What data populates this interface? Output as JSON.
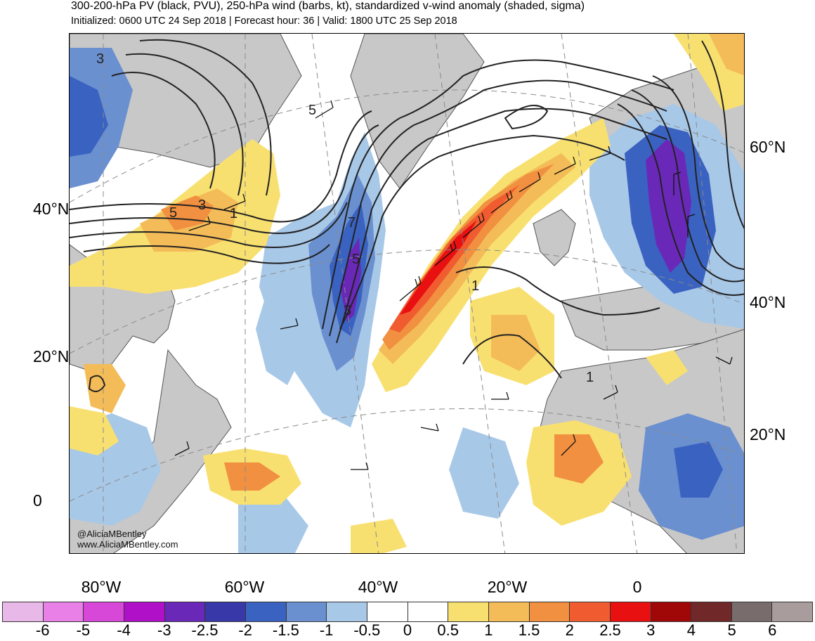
{
  "title": "300-200-hPa PV (black, PVU), 250-hPa wind (barbs, kt), standardized v-wind anomaly (shaded, sigma)",
  "subtitle": "Initialized: 0600 UTC 24 Sep 2018 | Forecast hour: 36 | Valid: 1800 UTC 25 Sep 2018",
  "map": {
    "left_lat_labels": [
      "40°N",
      "20°N",
      "0"
    ],
    "right_lat_labels": [
      "60°N",
      "40°N",
      "20°N"
    ],
    "lon_labels": [
      "80°W",
      "60°W",
      "40°W",
      "20°W",
      "0"
    ],
    "pv_contour_labels": [
      "3",
      "5",
      "3",
      "1",
      "7",
      "5",
      "3",
      "1",
      "1",
      "5"
    ],
    "credit_handle": "@AliciaMBentley",
    "credit_site": "www.AliciaMBentley.com"
  },
  "colorbar": {
    "colors": [
      "#e8b8e8",
      "#e880e8",
      "#d848d8",
      "#b010c8",
      "#6a28b8",
      "#3838a8",
      "#3a62c0",
      "#6a90d0",
      "#a8c8e8",
      "#ffffff",
      "#ffffff",
      "#f8e070",
      "#f4bc58",
      "#f09040",
      "#f05c30",
      "#e81010",
      "#a00808",
      "#702828",
      "#786c6c",
      "#a89c9c"
    ],
    "tick_labels": [
      "-6",
      "-5",
      "-4",
      "-3",
      "-2.5",
      "-2",
      "-1.5",
      "-1",
      "-0.5",
      "0",
      "0.5",
      "1",
      "1.5",
      "2",
      "2.5",
      "3",
      "4",
      "5",
      "6"
    ]
  }
}
